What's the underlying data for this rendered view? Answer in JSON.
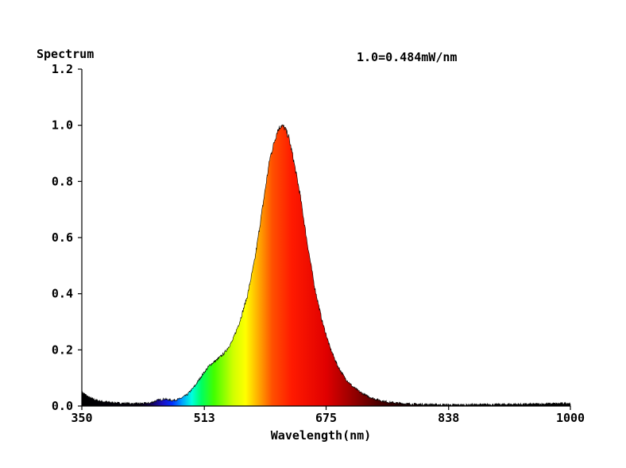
{
  "chart_data": {
    "type": "area",
    "title": "Spectrum",
    "annotation": "1.0=0.484mW/nm",
    "xlabel": "Wavelength(nm)",
    "ylabel": "",
    "xlim": [
      350,
      1000
    ],
    "ylim": [
      0,
      1.2
    ],
    "x_ticks": [
      "350",
      "513",
      "675",
      "838",
      "1000"
    ],
    "y_ticks": [
      "0.0",
      "0.2",
      "0.4",
      "0.6",
      "0.8",
      "1.0",
      "1.2"
    ],
    "fill": "wavelength spectrum colors",
    "series": [
      {
        "x": [
          350,
          355,
          360,
          370,
          380,
          400,
          420,
          440,
          450,
          460,
          470,
          480,
          490,
          500,
          510,
          520,
          530,
          540,
          550,
          560,
          570,
          580,
          590,
          600,
          610,
          615,
          620,
          625,
          630,
          640,
          650,
          660,
          670,
          680,
          690,
          700,
          710,
          720,
          730,
          740,
          750,
          760,
          780,
          800,
          820,
          840,
          860,
          880,
          900,
          920,
          940,
          960,
          980,
          1000
        ],
        "y": [
          0.05,
          0.04,
          0.03,
          0.02,
          0.015,
          0.01,
          0.008,
          0.01,
          0.02,
          0.025,
          0.02,
          0.025,
          0.04,
          0.07,
          0.11,
          0.145,
          0.165,
          0.19,
          0.23,
          0.3,
          0.39,
          0.52,
          0.7,
          0.88,
          0.98,
          1.0,
          0.99,
          0.96,
          0.9,
          0.76,
          0.58,
          0.42,
          0.3,
          0.21,
          0.145,
          0.1,
          0.07,
          0.05,
          0.035,
          0.025,
          0.018,
          0.013,
          0.008,
          0.006,
          0.005,
          0.004,
          0.004,
          0.005,
          0.005,
          0.006,
          0.006,
          0.007,
          0.008,
          0.01
        ]
      }
    ]
  }
}
